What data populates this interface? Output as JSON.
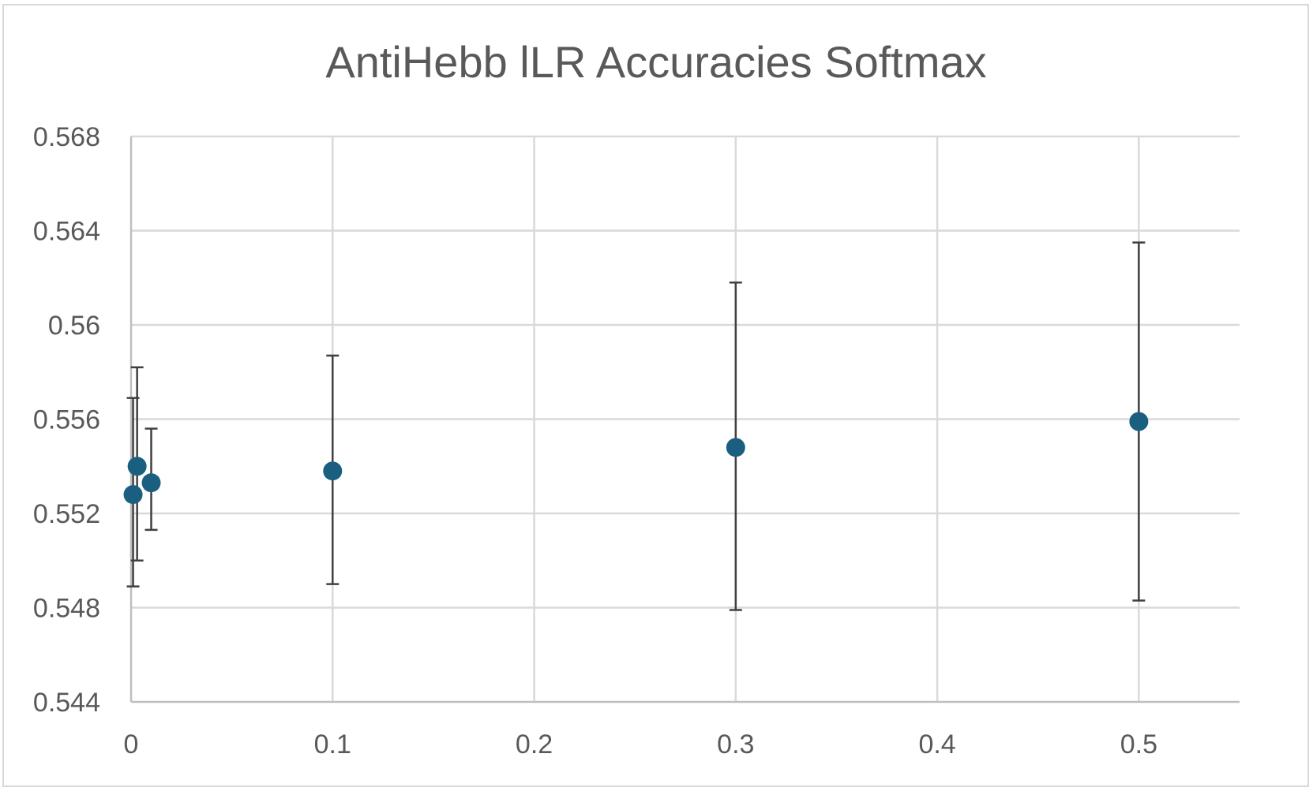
{
  "chart_data": {
    "type": "scatter",
    "title": "AntiHebb lLR Accuracies Softmax",
    "xlabel": "",
    "ylabel": "",
    "xlim": [
      0,
      0.55
    ],
    "ylim": [
      0.544,
      0.568
    ],
    "x_ticks": [
      0,
      0.1,
      0.2,
      0.3,
      0.4,
      0.5
    ],
    "x_tick_labels": [
      "0",
      "0.1",
      "0.2",
      "0.3",
      "0.4",
      "0.5"
    ],
    "y_ticks": [
      0.544,
      0.548,
      0.552,
      0.556,
      0.56,
      0.564,
      0.568
    ],
    "y_tick_labels": [
      "0.544",
      "0.548",
      "0.552",
      "0.556",
      "0.56",
      "0.564",
      "0.568"
    ],
    "grid": true,
    "legend": "none",
    "series": [
      {
        "color": "#1a5f80",
        "points": [
          {
            "x": 0.001,
            "y": 0.5528,
            "err_low": 0.5489,
            "err_high": 0.5569
          },
          {
            "x": 0.003,
            "y": 0.554,
            "err_low": 0.55,
            "err_high": 0.5582
          },
          {
            "x": 0.01,
            "y": 0.5533,
            "err_low": 0.5513,
            "err_high": 0.5556
          },
          {
            "x": 0.1,
            "y": 0.5538,
            "err_low": 0.549,
            "err_high": 0.5587
          },
          {
            "x": 0.3,
            "y": 0.5548,
            "err_low": 0.5479,
            "err_high": 0.5618
          },
          {
            "x": 0.5,
            "y": 0.5559,
            "err_low": 0.5483,
            "err_high": 0.5635
          }
        ]
      }
    ]
  },
  "colors": {
    "grid": "#d9d9d9",
    "axis": "#bfbfbf",
    "error_bar": "#404040",
    "marker": "#1a5f80",
    "text": "#595959"
  }
}
